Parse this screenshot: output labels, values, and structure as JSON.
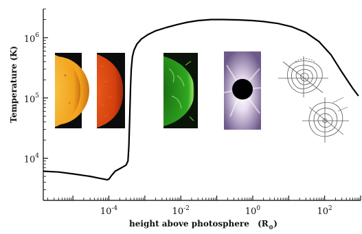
{
  "chart_data": {
    "type": "line",
    "title": "",
    "xlabel": "height above photosphere",
    "xlabel_unit_base": "R",
    "xlabel_unit_symbol": "⊙",
    "ylabel": "Temperature (K)",
    "x_scale": "log",
    "y_scale": "log",
    "xlim": [
      1.5e-06,
      1000
    ],
    "ylim": [
      2000,
      3000000
    ],
    "grid": false,
    "legend": "none",
    "x_ticks": [
      {
        "base": "10",
        "exp": "-4",
        "value": 0.0001
      },
      {
        "base": "10",
        "exp": "-2",
        "value": 0.01
      },
      {
        "base": "10",
        "exp": "0",
        "value": 1
      },
      {
        "base": "10",
        "exp": "2",
        "value": 100
      }
    ],
    "y_ticks": [
      {
        "base": "10",
        "exp": "4",
        "value": 10000
      },
      {
        "base": "10",
        "exp": "5",
        "value": 100000
      },
      {
        "base": "10",
        "exp": "6",
        "value": 1000000
      }
    ],
    "series": [
      {
        "color": "#000000",
        "x": [
          1.5e-06,
          4e-06,
          1e-05,
          3e-05,
          6e-05,
          9e-05,
          0.0001,
          0.00012,
          0.00015,
          0.0002,
          0.00025,
          0.0003,
          0.00034,
          0.00036,
          0.00038,
          0.0004,
          0.00042,
          0.00045,
          0.0005,
          0.0006,
          0.0008,
          0.0012,
          0.002,
          0.004,
          0.008,
          0.015,
          0.03,
          0.07,
          0.15,
          0.4,
          1,
          2,
          5,
          12,
          30,
          70,
          150,
          300,
          600,
          850
        ],
        "y": [
          6100,
          5900,
          5500,
          5000,
          4600,
          4400,
          4500,
          5200,
          6100,
          6700,
          7200,
          7700,
          9000,
          16000,
          50000,
          150000,
          300000,
          480000,
          620000,
          780000,
          950000,
          1120000,
          1300000,
          1480000,
          1650000,
          1800000,
          1920000,
          2000000,
          2000000,
          1970000,
          1920000,
          1850000,
          1720000,
          1520000,
          1220000,
          860000,
          520000,
          270000,
          145000,
          110000
        ]
      }
    ]
  },
  "inset_images": [
    {
      "name": "visible-sun-photo",
      "color": "#f0a020"
    },
    {
      "name": "red-chromosphere-sun-photo",
      "color": "#d84010"
    },
    {
      "name": "green-euv-corona-photo",
      "color": "#30b020"
    },
    {
      "name": "eclipse-corona-photo",
      "color": "#c9b0d8"
    },
    {
      "name": "coronagraph-contour-sketch-top",
      "color": "#555555"
    },
    {
      "name": "coronagraph-contour-sketch-bottom",
      "color": "#555555"
    }
  ]
}
